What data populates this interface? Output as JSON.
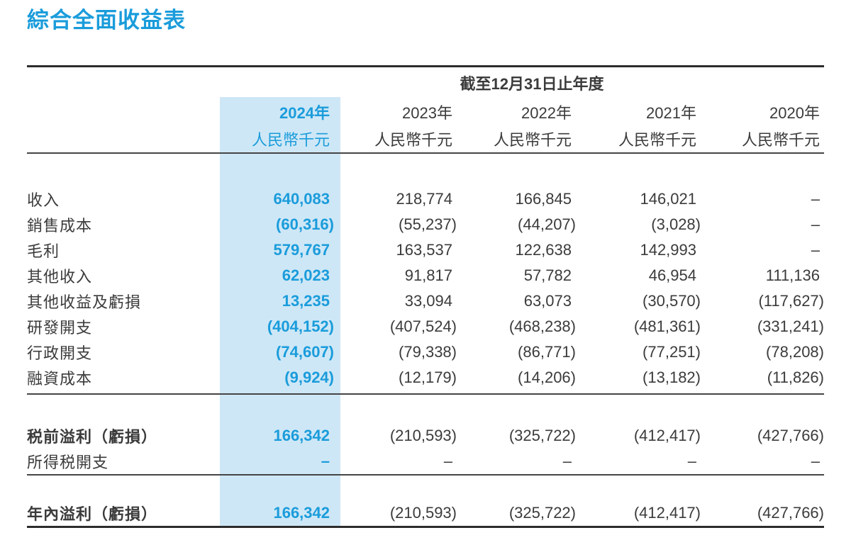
{
  "title": "綜合全面收益表",
  "colors": {
    "accent": "#1a9cdb",
    "highlight_bg": "#cee7f6",
    "text": "#3b3b3b"
  },
  "table": {
    "period_header": "截至12月31日止年度",
    "columns": [
      {
        "year": "2024年",
        "unit": "人民幣千元",
        "highlight": true
      },
      {
        "year": "2023年",
        "unit": "人民幣千元",
        "highlight": false
      },
      {
        "year": "2022年",
        "unit": "人民幣千元",
        "highlight": false
      },
      {
        "year": "2021年",
        "unit": "人民幣千元",
        "highlight": false
      },
      {
        "year": "2020年",
        "unit": "人民幣千元",
        "highlight": false
      }
    ],
    "rows": [
      {
        "label": "收入",
        "gap_before": 46,
        "values": [
          "640,083",
          "218,774",
          "166,845",
          "146,021",
          "–"
        ]
      },
      {
        "label": "銷售成本",
        "values": [
          "(60,316)",
          "(55,237)",
          "(44,207)",
          "(3,028)",
          "–"
        ]
      },
      {
        "label": "毛利",
        "values": [
          "579,767",
          "163,537",
          "122,638",
          "142,993",
          "–"
        ]
      },
      {
        "label": "其他收入",
        "values": [
          "62,023",
          "91,817",
          "57,782",
          "46,954",
          "111,136"
        ]
      },
      {
        "label": "其他收益及虧損",
        "values": [
          "13,235",
          "33,094",
          "63,073",
          "(30,570)",
          "(117,627)"
        ]
      },
      {
        "label": "研發開支",
        "values": [
          "(404,152)",
          "(407,524)",
          "(468,238)",
          "(481,361)",
          "(331,241)"
        ]
      },
      {
        "label": "行政開支",
        "values": [
          "(74,607)",
          "(79,338)",
          "(86,771)",
          "(77,251)",
          "(78,208)"
        ]
      },
      {
        "label": "融資成本",
        "rule_after": true,
        "rule_gap": 4,
        "values": [
          "(9,924)",
          "(12,179)",
          "(14,206)",
          "(13,182)",
          "(11,826)"
        ]
      },
      {
        "label": "税前溢利（虧損）",
        "bold": true,
        "gap_before": 40,
        "values": [
          "166,342",
          "(210,593)",
          "(325,722)",
          "(412,417)",
          "(427,766)"
        ]
      },
      {
        "label": "所得税開支",
        "rule_after": true,
        "values": [
          "–",
          "–",
          "–",
          "–",
          "–"
        ]
      },
      {
        "label": "年內溢利（虧損）",
        "bold": true,
        "gap_before": 35,
        "values": [
          "166,342",
          "(210,593)",
          "(325,722)",
          "(412,417)",
          "(427,766)"
        ]
      }
    ]
  }
}
